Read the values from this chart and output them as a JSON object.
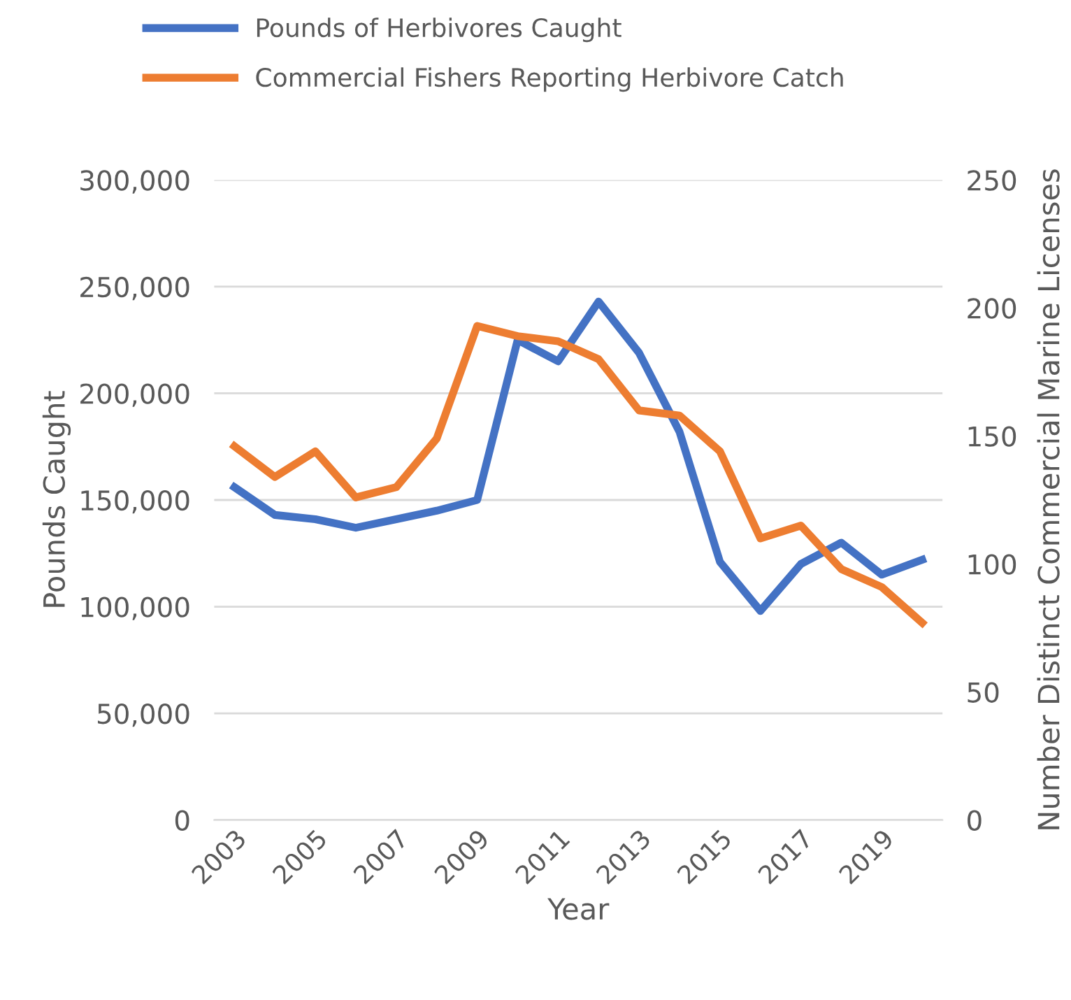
{
  "chart_data": {
    "type": "line",
    "xlabel": "Year",
    "ylabel": "Pounds Caught",
    "y2label": "Number Distinct Commercial Marine Licenses",
    "categories": [
      "2003",
      null,
      "2005",
      null,
      "2007",
      null,
      "2009",
      null,
      "2011",
      null,
      "2013",
      null,
      "2015",
      null,
      "2017",
      null,
      "2019",
      null
    ],
    "series": [
      {
        "name": "Pounds of Herbivores Caught",
        "color": "#4472c4",
        "values": [
          156000,
          143000,
          141000,
          137000,
          141000,
          145000,
          150000,
          225000,
          215000,
          243000,
          219000,
          182000,
          121000,
          98000,
          120000,
          130000,
          115000,
          122000
        ]
      },
      {
        "name": "Commercial Fishers Reporting Herbivore Catch",
        "color": "#ed7d31",
        "axis": "y2",
        "values": [
          146,
          134,
          144,
          126,
          130,
          149,
          193,
          189,
          187,
          180,
          160,
          158,
          144,
          110,
          115,
          98,
          91,
          77
        ]
      }
    ],
    "ylim": [
      0,
      300000
    ],
    "yticks": [
      {
        "value": 0,
        "label": "0"
      },
      {
        "value": 50000,
        "label": "50,000"
      },
      {
        "value": 100000,
        "label": "100,000"
      },
      {
        "value": 150000,
        "label": "150,000"
      },
      {
        "value": 200000,
        "label": "200,000"
      },
      {
        "value": 250000,
        "label": "250,000"
      },
      {
        "value": 300000,
        "label": "300,000"
      }
    ],
    "y2lim": [
      0,
      250
    ],
    "y2ticks": [
      0,
      50,
      100,
      150,
      200,
      250
    ],
    "grid": "y",
    "legend": "top",
    "marker": "none",
    "line_style": "solid"
  }
}
